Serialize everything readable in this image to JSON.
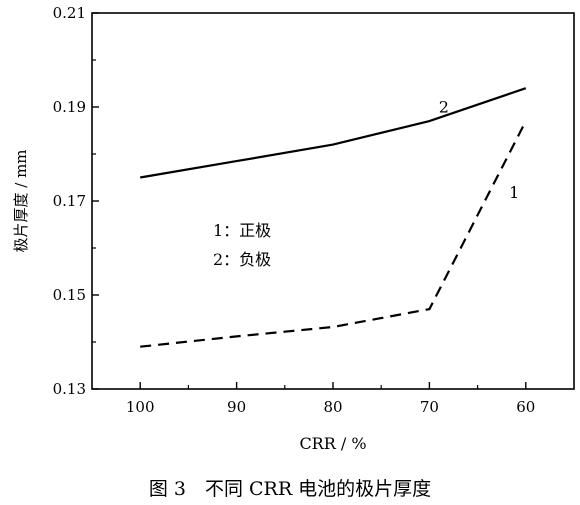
{
  "chart_data": {
    "type": "line",
    "xlabel": "CRR / %",
    "ylabel": "极片厚度 / mm",
    "x": [
      100,
      90,
      80,
      70,
      60
    ],
    "xlim": [
      105,
      55
    ],
    "ylim": [
      0.13,
      0.21
    ],
    "xticks": [
      100,
      90,
      80,
      70,
      60
    ],
    "yticks": [
      "0.13",
      "0.15",
      "0.17",
      "0.19",
      "0.21"
    ],
    "series": [
      {
        "label": "1",
        "style": "dashed",
        "values": [
          0.139,
          0.1412,
          0.1432,
          0.147,
          0.187
        ]
      },
      {
        "label": "2",
        "style": "solid",
        "values": [
          0.175,
          0.1785,
          0.182,
          0.187,
          0.194
        ]
      }
    ],
    "legend": [
      "1：正极",
      "2：负极"
    ],
    "grid": false
  },
  "caption": "图 3　不同 CRR 电池的极片厚度"
}
